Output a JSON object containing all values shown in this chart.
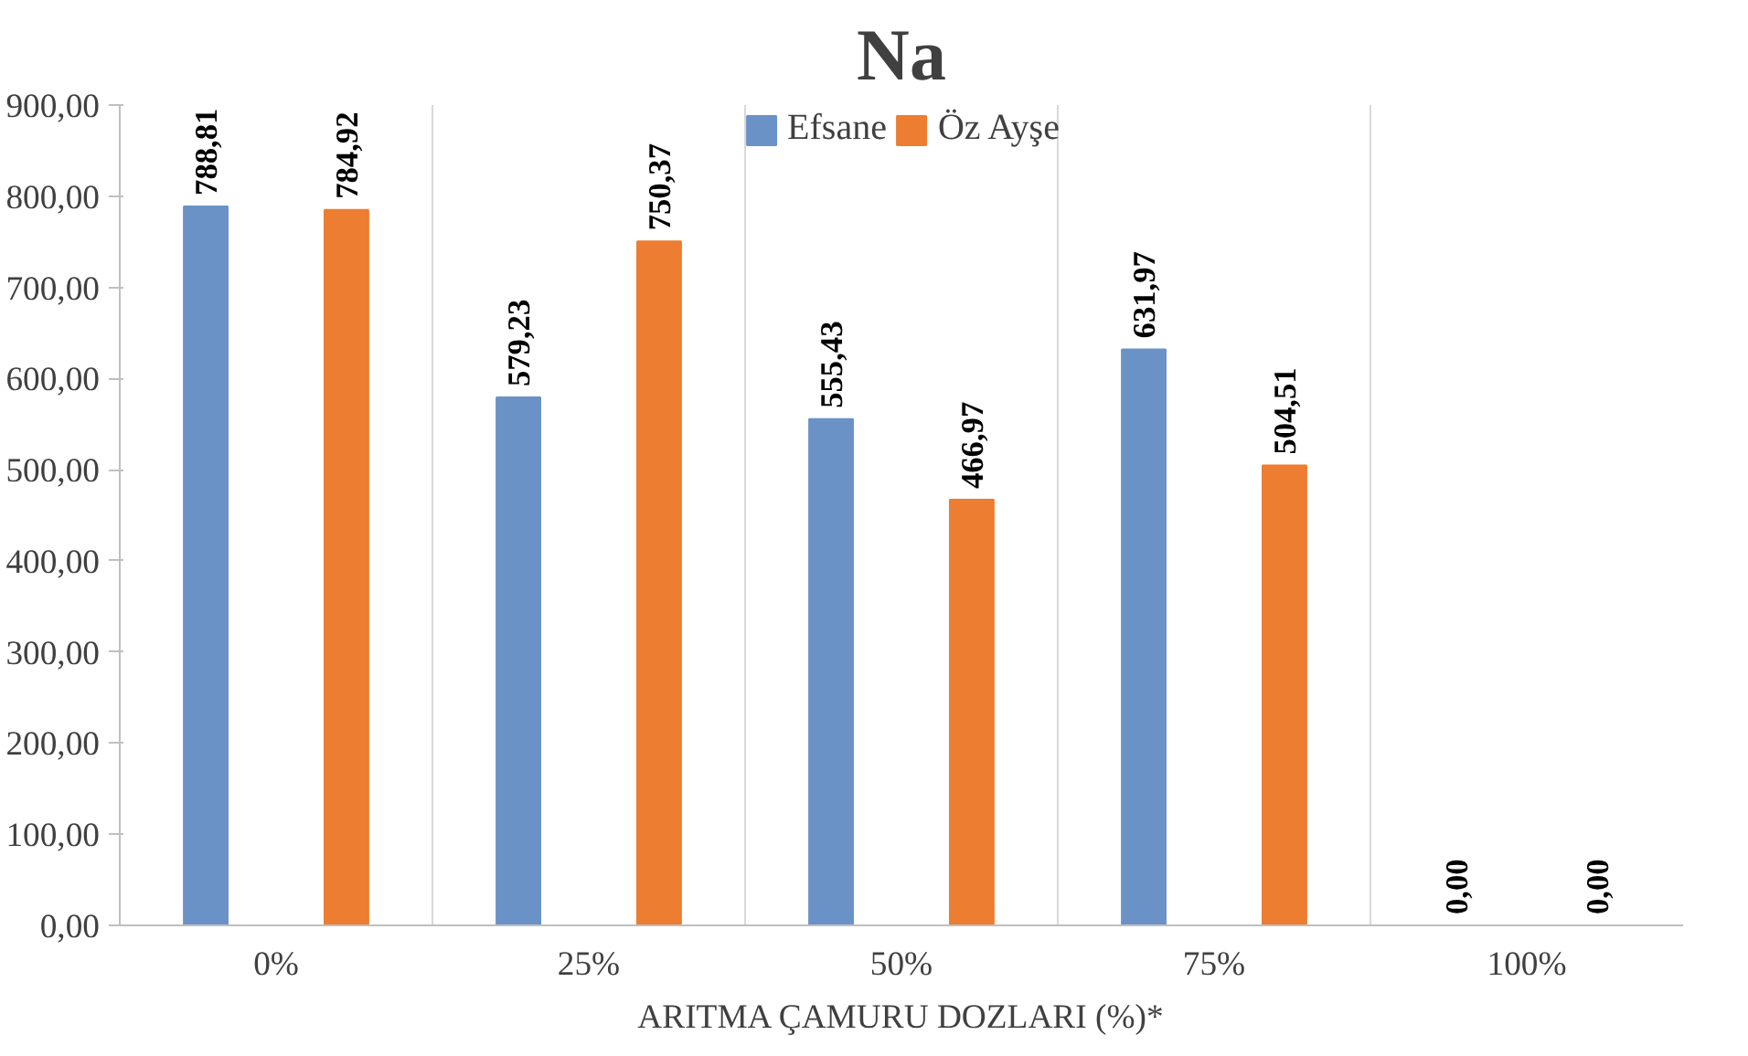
{
  "chart_data": {
    "type": "bar",
    "title": "Na",
    "xlabel": "ARITMA ÇAMURU DOZLARI (%)*",
    "categories": [
      "0%",
      "25%",
      "50%",
      "75%",
      "100%"
    ],
    "series": [
      {
        "name": "Efsane",
        "color": "#6a92c6",
        "values": [
          788.81,
          579.23,
          555.43,
          631.97,
          0
        ],
        "value_labels": [
          "788,81",
          "579,23",
          "555,43",
          "631,97",
          "0,00"
        ]
      },
      {
        "name": "Öz Ayşe",
        "color": "#ed7d31",
        "values": [
          784.92,
          750.37,
          466.97,
          504.51,
          0
        ],
        "value_labels": [
          "784,92",
          "750,37",
          "466,97",
          "504,51",
          "0,00"
        ]
      }
    ],
    "ylim": [
      0,
      900
    ],
    "yticks": [
      {
        "value": 0,
        "label": "0,00"
      },
      {
        "value": 100,
        "label": "100,00"
      },
      {
        "value": 200,
        "label": "200,00"
      },
      {
        "value": 300,
        "label": "300,00"
      },
      {
        "value": 400,
        "label": "400,00"
      },
      {
        "value": 500,
        "label": "500,00"
      },
      {
        "value": 600,
        "label": "600,00"
      },
      {
        "value": 700,
        "label": "700,00"
      },
      {
        "value": 800,
        "label": "800,00"
      },
      {
        "value": 900,
        "label": "900,00"
      }
    ],
    "grid": "x",
    "legend": "top"
  }
}
